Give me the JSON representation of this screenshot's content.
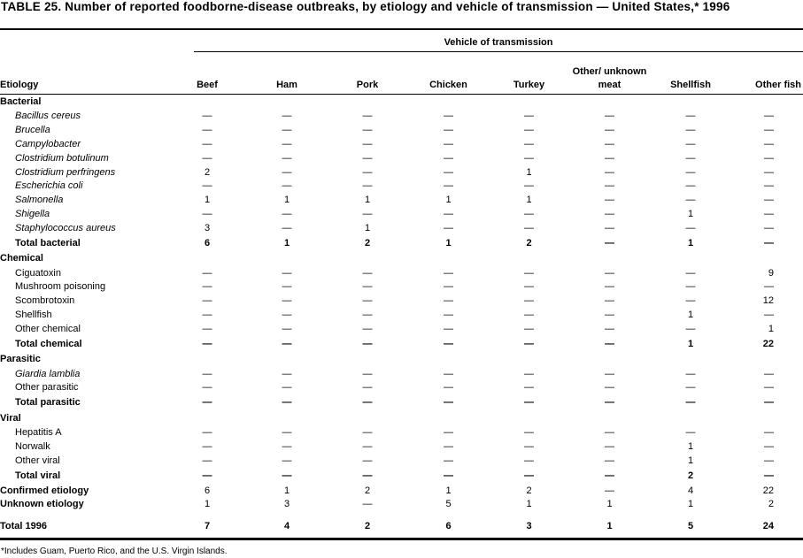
{
  "title": "TABLE 25. Number of reported foodborne-disease  outbreaks, by etiology and vehicle of transmission — United States,* 1996",
  "spanner": "Vehicle of transmission",
  "columns": [
    "Etiology",
    "Beef",
    "Ham",
    "Pork",
    "Chicken",
    "Turkey",
    "Other/ unknown meat",
    "Shellfish",
    "Other fish"
  ],
  "rows": [
    {
      "type": "cat",
      "label": "Bacterial",
      "values": []
    },
    {
      "type": "sub italic",
      "label": "Bacillus cereus",
      "values": [
        "—",
        "—",
        "—",
        "—",
        "—",
        "—",
        "—",
        "—"
      ]
    },
    {
      "type": "sub italic",
      "label": "Brucella",
      "values": [
        "—",
        "—",
        "—",
        "—",
        "—",
        "—",
        "—",
        "—"
      ]
    },
    {
      "type": "sub italic",
      "label": "Campylobacter",
      "values": [
        "—",
        "—",
        "—",
        "—",
        "—",
        "—",
        "—",
        "—"
      ]
    },
    {
      "type": "sub italic",
      "label": "Clostridium botulinum",
      "values": [
        "—",
        "—",
        "—",
        "—",
        "—",
        "—",
        "—",
        "—"
      ]
    },
    {
      "type": "sub italic",
      "label": "Clostridium perfringens",
      "values": [
        "2",
        "—",
        "—",
        "—",
        "1",
        "—",
        "—",
        "—"
      ]
    },
    {
      "type": "sub italic",
      "label": "Escherichia coli",
      "values": [
        "—",
        "—",
        "—",
        "—",
        "—",
        "—",
        "—",
        "—"
      ]
    },
    {
      "type": "sub italic",
      "label": "Salmonella",
      "values": [
        "1",
        "1",
        "1",
        "1",
        "1",
        "—",
        "—",
        "—"
      ]
    },
    {
      "type": "sub italic",
      "label": "Shigella",
      "values": [
        "—",
        "—",
        "—",
        "—",
        "—",
        "—",
        "1",
        "—"
      ]
    },
    {
      "type": "sub italic",
      "label": "Staphylococcus aureus",
      "values": [
        "3",
        "—",
        "1",
        "—",
        "—",
        "—",
        "—",
        "—"
      ]
    },
    {
      "type": "total",
      "label": "Total bacterial",
      "values": [
        "6",
        "1",
        "2",
        "1",
        "2",
        "—",
        "1",
        "—"
      ]
    },
    {
      "type": "cat",
      "label": "Chemical",
      "values": []
    },
    {
      "type": "sub",
      "label": "Ciguatoxin",
      "values": [
        "—",
        "—",
        "—",
        "—",
        "—",
        "—",
        "—",
        "9"
      ]
    },
    {
      "type": "sub",
      "label": "Mushroom poisoning",
      "values": [
        "—",
        "—",
        "—",
        "—",
        "—",
        "—",
        "—",
        "—"
      ]
    },
    {
      "type": "sub",
      "label": "Scombrotoxin",
      "values": [
        "—",
        "—",
        "—",
        "—",
        "—",
        "—",
        "—",
        "12"
      ]
    },
    {
      "type": "sub",
      "label": "Shellfish",
      "values": [
        "—",
        "—",
        "—",
        "—",
        "—",
        "—",
        "1",
        "—"
      ]
    },
    {
      "type": "sub",
      "label": "Other chemical",
      "values": [
        "—",
        "—",
        "—",
        "—",
        "—",
        "—",
        "—",
        "1"
      ]
    },
    {
      "type": "total",
      "label": "Total chemical",
      "values": [
        "—",
        "—",
        "—",
        "—",
        "—",
        "—",
        "1",
        "22"
      ]
    },
    {
      "type": "cat",
      "label": "Parasitic",
      "values": []
    },
    {
      "type": "sub italic",
      "label": "Giardia lamblia",
      "values": [
        "—",
        "—",
        "—",
        "—",
        "—",
        "—",
        "—",
        "—"
      ]
    },
    {
      "type": "sub",
      "label": "Other parasitic",
      "values": [
        "—",
        "—",
        "—",
        "—",
        "—",
        "—",
        "—",
        "—"
      ]
    },
    {
      "type": "total",
      "label": "Total parasitic",
      "values": [
        "—",
        "—",
        "—",
        "—",
        "—",
        "—",
        "—",
        "—"
      ]
    },
    {
      "type": "cat",
      "label": "Viral",
      "values": []
    },
    {
      "type": "sub",
      "label": "Hepatitis A",
      "values": [
        "—",
        "—",
        "—",
        "—",
        "—",
        "—",
        "—",
        "—"
      ]
    },
    {
      "type": "sub",
      "label": "Norwalk",
      "values": [
        "—",
        "—",
        "—",
        "—",
        "—",
        "—",
        "1",
        "—"
      ]
    },
    {
      "type": "sub",
      "label": "Other viral",
      "values": [
        "—",
        "—",
        "—",
        "—",
        "—",
        "—",
        "1",
        "—"
      ]
    },
    {
      "type": "total",
      "label": "Total viral",
      "values": [
        "—",
        "—",
        "—",
        "—",
        "—",
        "—",
        "2",
        "—"
      ]
    },
    {
      "type": "summary",
      "label": "Confirmed etiology",
      "values": [
        "6",
        "1",
        "2",
        "1",
        "2",
        "—",
        "4",
        "22"
      ]
    },
    {
      "type": "summary",
      "label": "Unknown etiology",
      "values": [
        "1",
        "3",
        "—",
        "5",
        "1",
        "1",
        "1",
        "2"
      ]
    },
    {
      "type": "grand",
      "label": "Total 1996",
      "values": [
        "7",
        "4",
        "2",
        "6",
        "3",
        "1",
        "5",
        "24"
      ]
    }
  ],
  "footnote": "*Includes Guam, Puerto Rico, and the U.S. Virgin Islands."
}
